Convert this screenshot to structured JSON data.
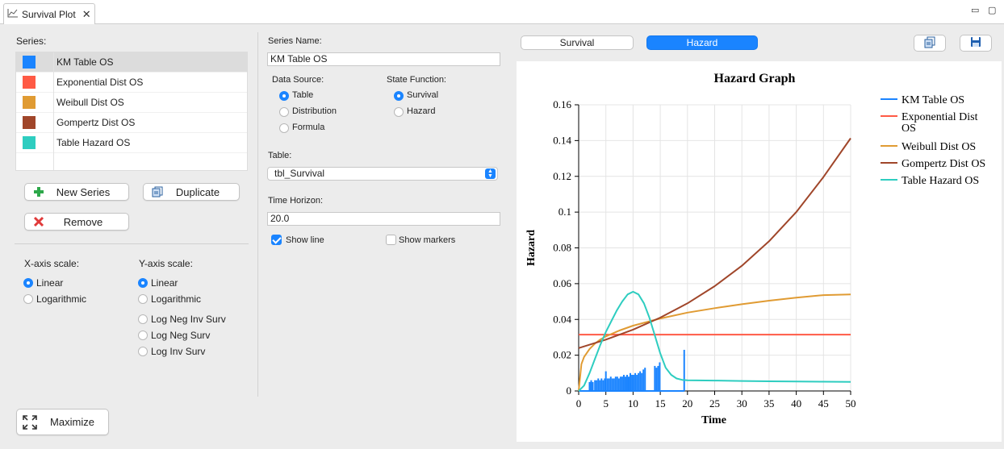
{
  "tab": {
    "title": "Survival Plot",
    "close": "✕"
  },
  "window_controls": {
    "minimize": "▭",
    "maximize": "▢"
  },
  "left": {
    "series_label": "Series:",
    "series": [
      {
        "name": "KM Table OS",
        "color": "#1a84ff",
        "selected": true
      },
      {
        "name": "Exponential Dist OS",
        "color": "#ff5a45",
        "selected": false
      },
      {
        "name": "Weibull Dist OS",
        "color": "#e09b33",
        "selected": false
      },
      {
        "name": "Gompertz Dist OS",
        "color": "#a0462a",
        "selected": false
      },
      {
        "name": "Table Hazard OS",
        "color": "#2ecdc0",
        "selected": false
      }
    ],
    "new_series_label": "New Series",
    "duplicate_label": "Duplicate",
    "remove_label": "Remove",
    "x_axis_scale_label": "X-axis scale:",
    "x_axis_options": [
      "Linear",
      "Logarithmic"
    ],
    "x_axis_selected": "Linear",
    "y_axis_scale_label": "Y-axis scale:",
    "y_axis_options": [
      "Linear",
      "Logarithmic",
      "Log Neg Inv Surv",
      "Log Neg Surv",
      "Log Inv Surv"
    ],
    "y_axis_selected": "Linear",
    "maximize_label": "Maximize"
  },
  "middle": {
    "series_name_label": "Series Name:",
    "series_name_value": "KM Table OS",
    "data_source_label": "Data Source:",
    "data_source_options": [
      "Table",
      "Distribution",
      "Formula"
    ],
    "data_source_selected": "Table",
    "state_function_label": "State Function:",
    "state_function_options": [
      "Survival",
      "Hazard"
    ],
    "state_function_selected": "Survival",
    "table_label": "Table:",
    "table_value": "tbl_Survival",
    "time_horizon_label": "Time Horizon:",
    "time_horizon_value": "20.0",
    "show_line_label": "Show line",
    "show_line_checked": true,
    "show_markers_label": "Show markers",
    "show_markers_checked": false
  },
  "right": {
    "view_tabs": [
      "Survival",
      "Hazard"
    ],
    "view_selected": "Hazard",
    "copy_icon": "copy-icon",
    "save_icon": "save-icon"
  },
  "chart_data": {
    "type": "line",
    "title": "Hazard Graph",
    "xlabel": "Time",
    "ylabel": "Hazard",
    "xlim": [
      0,
      50
    ],
    "ylim": [
      0,
      0.16
    ],
    "xticks": [
      "0",
      "5",
      "10",
      "15",
      "20",
      "25",
      "30",
      "35",
      "40",
      "45",
      "50"
    ],
    "yticks": [
      "0",
      "0.02",
      "0.04",
      "0.06",
      "0.08",
      "0.1",
      "0.12",
      "0.14",
      "0.16"
    ],
    "grid": true,
    "legend_position": "right",
    "series": [
      {
        "name": "KM Table OS",
        "color": "#1a84ff",
        "kind": "spikes",
        "x": [
          2.0,
          2.3,
          2.6,
          3.0,
          3.3,
          3.6,
          3.9,
          4.2,
          4.5,
          4.8,
          5.0,
          5.3,
          5.6,
          5.9,
          6.2,
          6.5,
          6.8,
          7.1,
          7.4,
          7.7,
          8.0,
          8.3,
          8.6,
          8.9,
          9.2,
          9.5,
          9.8,
          10.1,
          10.4,
          10.7,
          11.0,
          11.3,
          11.6,
          11.9,
          12.2,
          14.0,
          14.3,
          14.6,
          14.9,
          19.4
        ],
        "y": [
          0.005,
          0.006,
          0.005,
          0.006,
          0.006,
          0.007,
          0.006,
          0.007,
          0.006,
          0.007,
          0.011,
          0.007,
          0.007,
          0.008,
          0.007,
          0.007,
          0.008,
          0.008,
          0.007,
          0.008,
          0.008,
          0.009,
          0.008,
          0.009,
          0.008,
          0.01,
          0.009,
          0.009,
          0.01,
          0.009,
          0.01,
          0.011,
          0.01,
          0.012,
          0.013,
          0.014,
          0.013,
          0.014,
          0.016,
          0.023
        ]
      },
      {
        "name": "Exponential Dist OS",
        "color": "#ff5a45",
        "x": [
          0,
          50
        ],
        "y": [
          0.0315,
          0.0315
        ]
      },
      {
        "name": "Weibull Dist OS",
        "color": "#e09b33",
        "x": [
          0,
          0.5,
          1,
          2,
          3,
          4,
          5,
          7.5,
          10,
          15,
          20,
          25,
          30,
          35,
          40,
          45,
          50
        ],
        "y": [
          0,
          0.015,
          0.019,
          0.0235,
          0.0265,
          0.0288,
          0.0305,
          0.0338,
          0.0365,
          0.0405,
          0.0438,
          0.0463,
          0.0485,
          0.0505,
          0.0522,
          0.0536,
          0.054
        ]
      },
      {
        "name": "Gompertz Dist OS",
        "color": "#a0462a",
        "x": [
          0,
          5,
          10,
          15,
          20,
          25,
          30,
          35,
          40,
          45,
          50
        ],
        "y": [
          0.024,
          0.0287,
          0.0343,
          0.041,
          0.049,
          0.0586,
          0.07,
          0.0837,
          0.1,
          0.1196,
          0.1413
        ]
      },
      {
        "name": "Table Hazard OS",
        "color": "#2ecdc0",
        "x": [
          0,
          1,
          2,
          3,
          4,
          5,
          6,
          7,
          8,
          9,
          10,
          11,
          12,
          13,
          14,
          15,
          16,
          17,
          18,
          19,
          20,
          25,
          30,
          35,
          40,
          45,
          50
        ],
        "y": [
          0,
          0.003,
          0.01,
          0.018,
          0.026,
          0.033,
          0.039,
          0.045,
          0.05,
          0.054,
          0.0555,
          0.054,
          0.049,
          0.041,
          0.031,
          0.021,
          0.013,
          0.009,
          0.007,
          0.0062,
          0.006,
          0.0058,
          0.0056,
          0.0054,
          0.0053,
          0.0052,
          0.0051
        ]
      }
    ]
  }
}
